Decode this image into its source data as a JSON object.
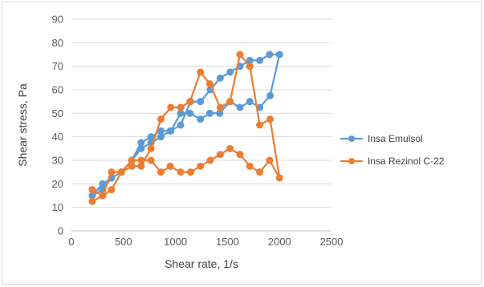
{
  "chart_data": {
    "type": "line",
    "title": "",
    "xlabel": "Shear rate, 1/s",
    "ylabel": "Shear stress, Pa",
    "xlim": [
      0,
      2500
    ],
    "ylim": [
      0,
      90
    ],
    "xticks": [
      0,
      500,
      1000,
      1500,
      2000,
      2500
    ],
    "yticks": [
      0,
      10,
      20,
      30,
      40,
      50,
      60,
      70,
      80,
      90
    ],
    "grid": "horizontal",
    "legend_position": "right",
    "series": [
      {
        "name": "Insa Emulsol",
        "color": "#5b9bd5",
        "marker": "circle",
        "x": [
          200,
          300,
          385,
          480,
          580,
          670,
          765,
          860,
          955,
          1050,
          1140,
          1240,
          1330,
          1425,
          1525,
          1620,
          1715,
          1810,
          1910,
          2000,
          1905,
          1810,
          1715,
          1620,
          1525,
          1430,
          1335,
          1240,
          1145,
          1050,
          950,
          860,
          765,
          670,
          580,
          480,
          385,
          300,
          200
        ],
        "y": [
          15,
          20,
          22.5,
          25,
          30,
          37.5,
          40,
          42.5,
          42.5,
          50,
          50,
          47.5,
          50,
          50,
          55,
          52.5,
          55,
          52.5,
          57.5,
          75,
          75,
          72.5,
          72.5,
          70,
          67.5,
          65,
          60,
          55,
          55,
          45,
          42.5,
          40,
          37.5,
          35,
          30,
          25,
          22.5,
          17.5,
          15
        ]
      },
      {
        "name": "Insa Rezinol C-22",
        "color": "#ed7d31",
        "marker": "circle",
        "x": [
          200,
          300,
          385,
          480,
          580,
          670,
          765,
          860,
          955,
          1050,
          1140,
          1240,
          1330,
          1430,
          1525,
          1620,
          1715,
          1810,
          1910,
          2000,
          1905,
          1810,
          1715,
          1620,
          1525,
          1430,
          1335,
          1240,
          1145,
          1050,
          950,
          860,
          765,
          670,
          580,
          480,
          385,
          300,
          200
        ],
        "y": [
          12.5,
          15,
          17.5,
          25,
          27.5,
          27.5,
          35,
          47.5,
          52.5,
          52.5,
          55,
          67.5,
          62.5,
          52.5,
          55,
          75,
          70,
          45,
          47.5,
          22.5,
          30,
          25,
          27.5,
          32.5,
          35,
          32.5,
          30,
          27.5,
          25,
          25,
          27.5,
          25,
          30,
          30,
          30,
          25,
          25,
          15,
          17.5
        ]
      }
    ]
  }
}
